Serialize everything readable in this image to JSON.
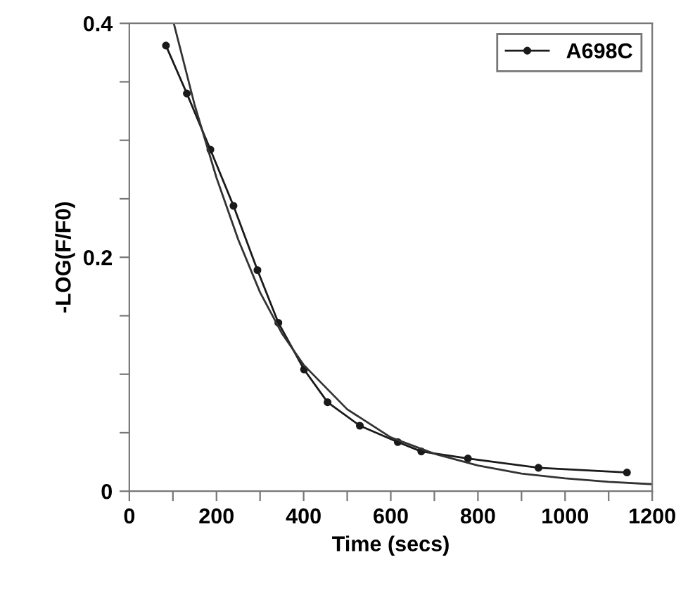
{
  "chart_data": {
    "type": "line",
    "xlabel": "Time (secs)",
    "ylabel": "-LOG(F/F0)",
    "xlim": [
      0,
      1200
    ],
    "ylim": [
      0,
      0.4
    ],
    "xticks": [
      0,
      {
        "value": 100,
        "label": null
      },
      200,
      {
        "value": 300,
        "label": null
      },
      400,
      {
        "value": 500,
        "label": null
      },
      600,
      {
        "value": 700,
        "label": null
      },
      800,
      {
        "value": 900,
        "label": null
      },
      1000,
      {
        "value": 1100,
        "label": null
      },
      1200
    ],
    "yticks": [
      0,
      {
        "value": 0.05,
        "label": null
      },
      {
        "value": 0.1,
        "label": null
      },
      {
        "value": 0.15,
        "label": null
      },
      0.2,
      {
        "value": 0.25,
        "label": null
      },
      {
        "value": 0.3,
        "label": null
      },
      {
        "value": 0.35,
        "label": null
      },
      0.4
    ],
    "grid": false,
    "legend": "top right",
    "series": [
      {
        "name": "A698C",
        "color": "#1a1a1a",
        "marker": "circle",
        "x": [
          84,
          132,
          186,
          239,
          294,
          342,
          401,
          455,
          529,
          616,
          670,
          777,
          939,
          1142
        ],
        "values": [
          0.381,
          0.34,
          0.292,
          0.244,
          0.189,
          0.144,
          0.104,
          0.076,
          0.056,
          0.042,
          0.034,
          0.028,
          0.02,
          0.016
        ]
      },
      {
        "color": "#333333",
        "marker": "none",
        "x": [
          102,
          150,
          200,
          250,
          300,
          350,
          400,
          500,
          600,
          700,
          800,
          900,
          1000,
          1100,
          1200
        ],
        "values": [
          0.4,
          0.33,
          0.268,
          0.215,
          0.17,
          0.135,
          0.108,
          0.07,
          0.046,
          0.032,
          0.022,
          0.015,
          0.011,
          0.008,
          0.006
        ]
      }
    ]
  }
}
